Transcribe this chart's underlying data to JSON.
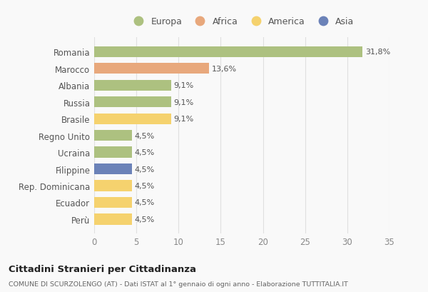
{
  "categories": [
    "Romania",
    "Marocco",
    "Albania",
    "Russia",
    "Brasile",
    "Regno Unito",
    "Ucraina",
    "Filippine",
    "Rep. Dominicana",
    "Ecuador",
    "Perù"
  ],
  "values": [
    31.8,
    13.6,
    9.1,
    9.1,
    9.1,
    4.5,
    4.5,
    4.5,
    4.5,
    4.5,
    4.5
  ],
  "labels": [
    "31,8%",
    "13,6%",
    "9,1%",
    "9,1%",
    "9,1%",
    "4,5%",
    "4,5%",
    "4,5%",
    "4,5%",
    "4,5%",
    "4,5%"
  ],
  "colors": [
    "#adc180",
    "#e8a87c",
    "#adc180",
    "#adc180",
    "#f5d26e",
    "#adc180",
    "#adc180",
    "#6b82b8",
    "#f5d26e",
    "#f5d26e",
    "#f5d26e"
  ],
  "legend": [
    {
      "label": "Europa",
      "color": "#adc180"
    },
    {
      "label": "Africa",
      "color": "#e8a87c"
    },
    {
      "label": "America",
      "color": "#f5d26e"
    },
    {
      "label": "Asia",
      "color": "#6b82b8"
    }
  ],
  "xlim": [
    0,
    35
  ],
  "xticks": [
    0,
    5,
    10,
    15,
    20,
    25,
    30,
    35
  ],
  "title": "Cittadini Stranieri per Cittadinanza",
  "subtitle": "COMUNE DI SCURZOLENGO (AT) - Dati ISTAT al 1° gennaio di ogni anno - Elaborazione TUTTITALIA.IT",
  "bg_color": "#f9f9f9",
  "grid_color": "#e0e0e0",
  "label_fontsize": 8,
  "ytick_fontsize": 8.5,
  "xtick_fontsize": 8.5
}
